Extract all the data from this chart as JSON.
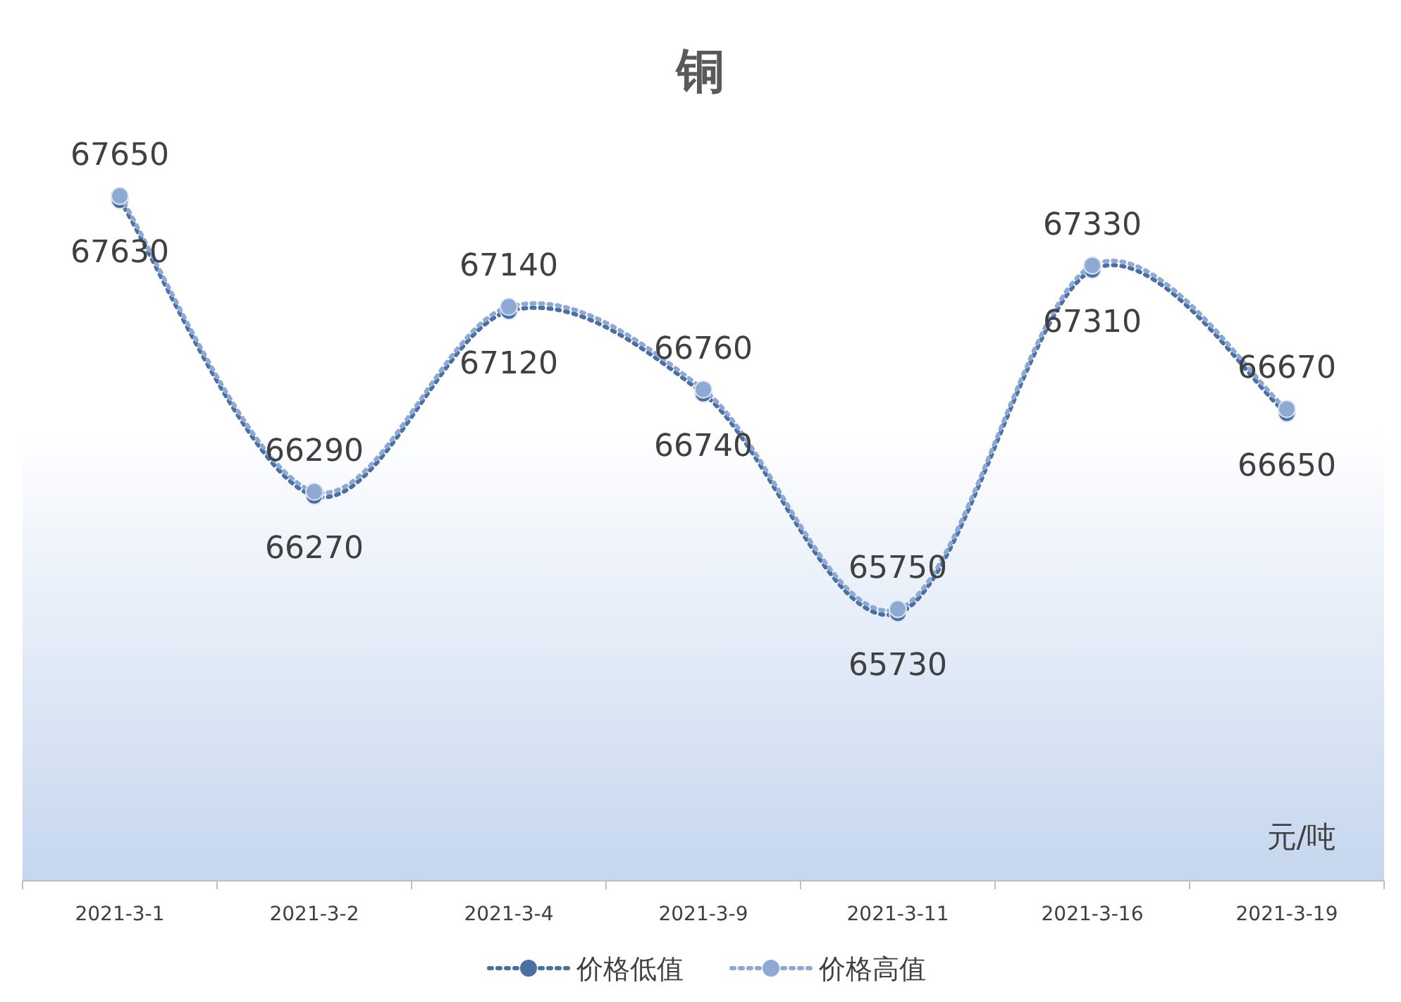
{
  "chart_data": {
    "type": "line",
    "title": "铜",
    "categories": [
      "2021-3-1",
      "2021-3-2",
      "2021-3-4",
      "2021-3-9",
      "2021-3-11",
      "2021-3-16",
      "2021-3-19"
    ],
    "series": [
      {
        "name": "价格低值",
        "color": "#4a6fa5",
        "values": [
          67630,
          66270,
          67120,
          66740,
          65730,
          67310,
          66650
        ]
      },
      {
        "name": "价格高值",
        "color": "#8eaad4",
        "values": [
          67650,
          66290,
          67140,
          66760,
          65750,
          67330,
          66670
        ]
      }
    ],
    "ylim": [
      64500,
      68000
    ],
    "data_labels": true,
    "legend": "bottom",
    "marker": "circle",
    "line_style": "dotted",
    "annotations": [
      "元/吨"
    ]
  }
}
